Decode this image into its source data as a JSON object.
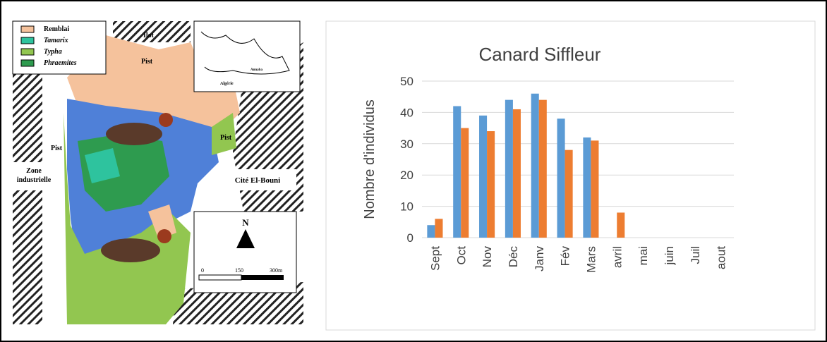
{
  "chart_data": {
    "type": "bar",
    "title": "Canard Siffleur",
    "y_label": "Nombre d'individus",
    "categories": [
      "Sept",
      "Oct",
      "Nov",
      "Déc",
      "Janv",
      "Fév",
      "Mars",
      "avril",
      "mai",
      "juin",
      "Juil",
      "aout"
    ],
    "series": [
      {
        "color": "#5b9bd5",
        "values": [
          4,
          42,
          39,
          44,
          46,
          38,
          32,
          null,
          null,
          null,
          null,
          null
        ]
      },
      {
        "color": "#ed7d31",
        "values": [
          6,
          35,
          34,
          41,
          44,
          28,
          31,
          8,
          null,
          null,
          null,
          null
        ]
      }
    ],
    "ylim": [
      0,
      50
    ],
    "yticks": [
      0,
      10,
      20,
      30,
      40,
      50
    ],
    "grid": true
  },
  "map": {
    "legend": [
      "Remblai",
      "Tamarix",
      "Typha",
      "Phraemites"
    ],
    "labels": {
      "ilot": "Ilot",
      "pist_top": "Pist",
      "pist_left": "Pist",
      "pist_right": "Pist",
      "zone": [
        "Zone",
        "industrielle"
      ],
      "cite": "Cité El-Bouni",
      "north": "N",
      "scale": [
        "0",
        "150",
        "300m"
      ],
      "inset": [
        "Algérie",
        "Annaba"
      ]
    }
  }
}
